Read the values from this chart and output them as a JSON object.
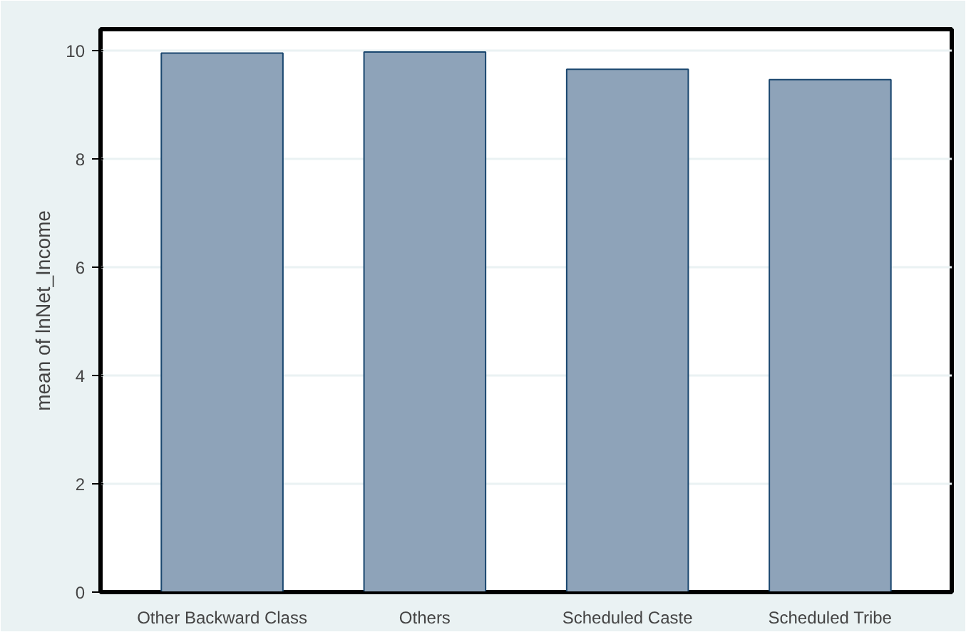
{
  "chart_data": {
    "type": "bar",
    "ylabel": "mean of lnNet_Income",
    "categories": [
      "Other Backward Class",
      "Others",
      "Scheduled Caste",
      "Scheduled Tribe"
    ],
    "values": [
      9.96,
      9.98,
      9.66,
      9.47
    ],
    "color": "#8ea3b9",
    "ylim": [
      0,
      10.4
    ],
    "yticks": [
      0,
      2,
      4,
      6,
      8,
      10
    ],
    "grid": "y"
  }
}
